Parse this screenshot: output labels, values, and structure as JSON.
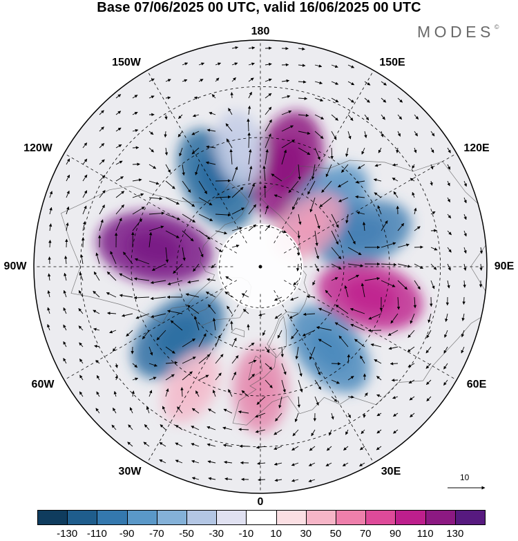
{
  "title": "Base 07/06/2025 00 UTC, valid 16/06/2025 00 UTC",
  "brand": {
    "text": "MODES",
    "mark": "©"
  },
  "map": {
    "projection": "north-polar-stereographic",
    "longitude_labels": [
      "180",
      "150E",
      "120E",
      "90E",
      "60E",
      "30E",
      "0",
      "30W",
      "60W",
      "90W",
      "120W",
      "150W"
    ],
    "anomalies": [
      {
        "lon": -100,
        "lat": 52,
        "value": 120,
        "color": "#7a1a86"
      },
      {
        "lon": -153,
        "lat": 55,
        "value": -100,
        "color": "#2a6ca0"
      },
      {
        "lon": 165,
        "lat": 53,
        "value": 110,
        "color": "#8e1680"
      },
      {
        "lon": 133,
        "lat": 57,
        "value": -75,
        "color": "#5b95c5"
      },
      {
        "lon": 108,
        "lat": 52,
        "value": -85,
        "color": "#4681b5"
      },
      {
        "lon": 75,
        "lat": 50,
        "value": 100,
        "color": "#c02890"
      },
      {
        "lon": 40,
        "lat": 52,
        "value": -85,
        "color": "#4e8bbd"
      },
      {
        "lon": 0,
        "lat": 47,
        "value": 55,
        "color": "#e58cb0"
      },
      {
        "lon": -50,
        "lat": 52,
        "value": -100,
        "color": "#2f6fa3"
      },
      {
        "lon": -30,
        "lat": 42,
        "value": 35,
        "color": "#f3bccc"
      },
      {
        "lon": 130,
        "lat": 67,
        "value": 45,
        "color": "#eb9cba"
      },
      {
        "lon": -170,
        "lat": 48,
        "value": -30,
        "color": "#c4cde6"
      }
    ],
    "reference_vector": {
      "value": "10"
    }
  },
  "colorbar": {
    "colors": [
      "#0f3c5e",
      "#1f5d8c",
      "#3478ae",
      "#5a98c8",
      "#84b1d8",
      "#b3c6e4",
      "#e0e1f1",
      "#ffffff",
      "#fbdfe3",
      "#f6b5c7",
      "#ee7fab",
      "#de4a99",
      "#bd1f8c",
      "#8c1982",
      "#571a7f"
    ],
    "ticks": [
      "-130",
      "-110",
      "-90",
      "-70",
      "-50",
      "-30",
      "-10",
      "10",
      "30",
      "50",
      "70",
      "90",
      "110",
      "130"
    ]
  }
}
